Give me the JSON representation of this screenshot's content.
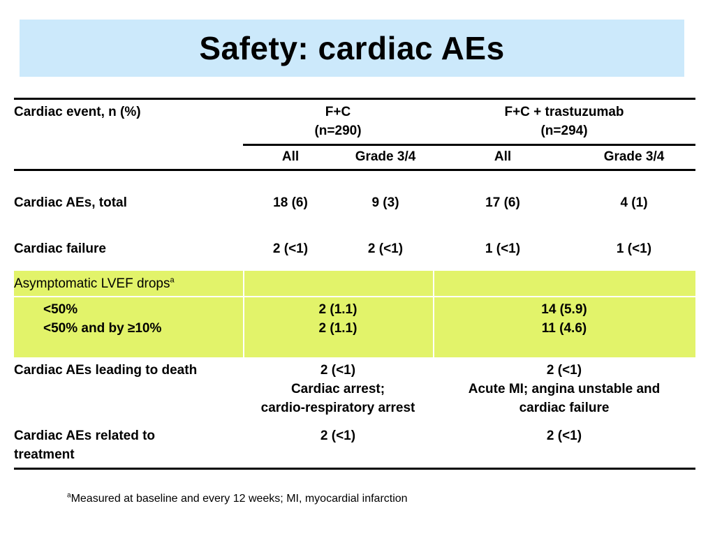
{
  "slide": {
    "title": "Safety: cardiac AEs"
  },
  "table": {
    "row_header_label": "Cardiac event, n (%)",
    "groups": [
      {
        "name": "F+C",
        "n": "(n=290)"
      },
      {
        "name": "F+C + trastuzumab",
        "n": "(n=294)"
      }
    ],
    "subheaders": [
      "All",
      "Grade 3/4",
      "All",
      "Grade 3/4"
    ],
    "rows": {
      "total": {
        "label": "Cardiac AEs, total",
        "values": [
          "18 (6)",
          "9 (3)",
          "17 (6)",
          "4 (1)"
        ]
      },
      "failure": {
        "label": "Cardiac failure",
        "values": [
          "2 (<1)",
          "2 (<1)",
          "1 (<1)",
          "1 (<1)"
        ]
      },
      "lvef": {
        "label": "Asymptomatic LVEF drops",
        "footnote_marker": "a",
        "sub1": {
          "label": "<50%",
          "fc": "2 (1.1)",
          "fct": "14 (5.9)"
        },
        "sub2": {
          "label": "<50% and by ≥10%",
          "fc": "2 (1.1)",
          "fct": "11 (4.6)"
        },
        "highlight_color": "#e2f36a"
      },
      "death": {
        "label": "Cardiac AEs leading to death",
        "fc_lines": [
          "2 (<1)",
          "Cardiac arrest;",
          "cardio-respiratory arrest"
        ],
        "fct_lines": [
          "2 (<1)",
          "Acute MI; angina unstable and",
          "cardiac failure"
        ]
      },
      "related": {
        "label_lines": [
          "Cardiac AEs related to",
          "treatment"
        ],
        "fc": "2 (<1)",
        "fct": "2 (<1)"
      }
    }
  },
  "footnote": {
    "marker": "a",
    "text": "Measured at baseline and every 12 weeks; MI, myocardial infarction"
  },
  "colors": {
    "title_bg": "#cce9fb",
    "highlight": "#e2f36a"
  }
}
